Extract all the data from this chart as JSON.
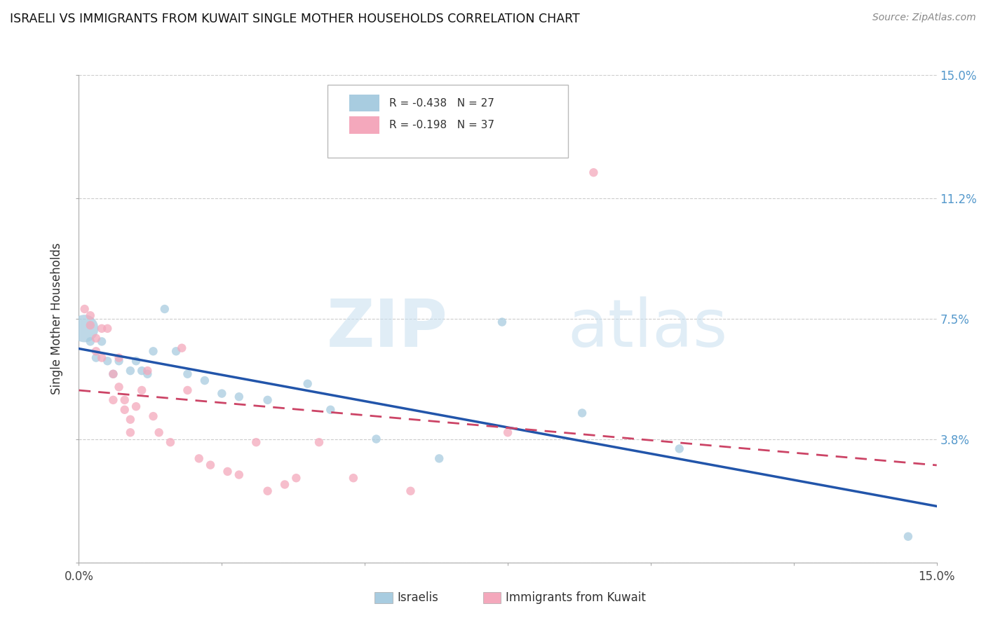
{
  "title": "ISRAELI VS IMMIGRANTS FROM KUWAIT SINGLE MOTHER HOUSEHOLDS CORRELATION CHART",
  "source": "Source: ZipAtlas.com",
  "legend_label_blue": "Israelis",
  "legend_label_pink": "Immigrants from Kuwait",
  "ylabel": "Single Mother Households",
  "watermark_zip": "ZIP",
  "watermark_atlas": "atlas",
  "xmin": 0.0,
  "xmax": 0.15,
  "ymin": 0.0,
  "ymax": 0.15,
  "yticks": [
    0.0,
    0.038,
    0.075,
    0.112,
    0.15
  ],
  "ytick_labels_right": [
    "3.8%",
    "7.5%",
    "11.2%",
    "15.0%"
  ],
  "xtick_positions": [
    0.0,
    0.025,
    0.05,
    0.075,
    0.1,
    0.125,
    0.15
  ],
  "legend_blue_r": "-0.438",
  "legend_blue_n": "27",
  "legend_pink_r": "-0.198",
  "legend_pink_n": "37",
  "blue_color": "#a8cce0",
  "pink_color": "#f4a8bc",
  "line_blue": "#2255aa",
  "line_pink": "#cc4466",
  "israelis_x": [
    0.001,
    0.002,
    0.003,
    0.004,
    0.005,
    0.006,
    0.007,
    0.009,
    0.01,
    0.011,
    0.012,
    0.013,
    0.015,
    0.017,
    0.019,
    0.022,
    0.025,
    0.028,
    0.033,
    0.04,
    0.044,
    0.052,
    0.063,
    0.074,
    0.088,
    0.105,
    0.145
  ],
  "israelis_y": [
    0.072,
    0.068,
    0.063,
    0.068,
    0.062,
    0.058,
    0.062,
    0.059,
    0.062,
    0.059,
    0.058,
    0.065,
    0.078,
    0.065,
    0.058,
    0.056,
    0.052,
    0.051,
    0.05,
    0.055,
    0.047,
    0.038,
    0.032,
    0.074,
    0.046,
    0.035,
    0.008
  ],
  "israelis_size": [
    800,
    80,
    80,
    80,
    80,
    80,
    80,
    80,
    80,
    80,
    80,
    80,
    80,
    80,
    80,
    80,
    80,
    80,
    80,
    80,
    80,
    80,
    80,
    80,
    80,
    80,
    80
  ],
  "kuwait_x": [
    0.001,
    0.002,
    0.002,
    0.003,
    0.003,
    0.004,
    0.004,
    0.005,
    0.006,
    0.006,
    0.007,
    0.007,
    0.008,
    0.008,
    0.009,
    0.009,
    0.01,
    0.011,
    0.012,
    0.013,
    0.014,
    0.016,
    0.018,
    0.019,
    0.021,
    0.023,
    0.026,
    0.028,
    0.031,
    0.033,
    0.036,
    0.038,
    0.042,
    0.048,
    0.058,
    0.075,
    0.09
  ],
  "kuwait_y": [
    0.078,
    0.076,
    0.073,
    0.069,
    0.065,
    0.072,
    0.063,
    0.072,
    0.058,
    0.05,
    0.063,
    0.054,
    0.05,
    0.047,
    0.044,
    0.04,
    0.048,
    0.053,
    0.059,
    0.045,
    0.04,
    0.037,
    0.066,
    0.053,
    0.032,
    0.03,
    0.028,
    0.027,
    0.037,
    0.022,
    0.024,
    0.026,
    0.037,
    0.026,
    0.022,
    0.04,
    0.12
  ],
  "kuwait_size": [
    80,
    80,
    80,
    80,
    80,
    80,
    80,
    80,
    80,
    80,
    80,
    80,
    80,
    80,
    80,
    80,
    80,
    80,
    80,
    80,
    80,
    80,
    80,
    80,
    80,
    80,
    80,
    80,
    80,
    80,
    80,
    80,
    80,
    80,
    80,
    80,
    80
  ]
}
